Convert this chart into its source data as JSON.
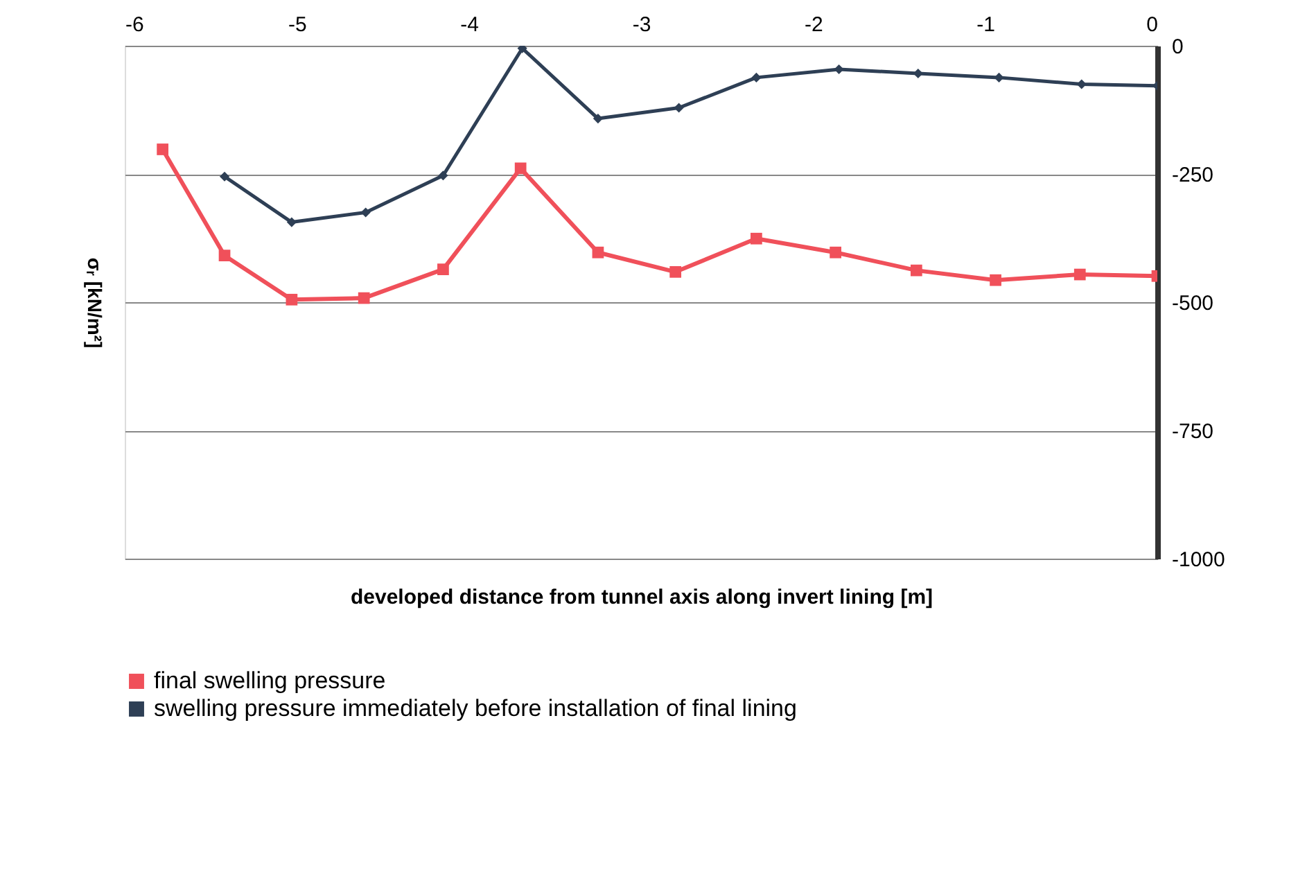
{
  "chart_data": {
    "type": "line",
    "xlabel": "developed distance from tunnel axis along invert lining [m]",
    "ylabel": "σᵣ [kN/m²]",
    "xlim": [
      -6,
      0
    ],
    "xticks": [
      -6,
      -5,
      -4,
      -3,
      -2,
      -1,
      0
    ],
    "ylim": [
      -1000,
      0
    ],
    "yticks": [
      0,
      -250,
      -500,
      -750,
      -1000
    ],
    "grid": "y",
    "legend": "bottom",
    "series": [
      {
        "name": "final swelling pressure",
        "color": "#f0505a",
        "marker": "square",
        "x": [
          -5.78,
          -5.42,
          -5.03,
          -4.61,
          -4.15,
          -3.7,
          -3.25,
          -2.8,
          -2.33,
          -1.87,
          -1.4,
          -0.94,
          -0.45,
          0
        ],
        "values": [
          -202,
          -409,
          -495,
          -492,
          -436,
          -239,
          -403,
          -441,
          -376,
          -403,
          -438,
          -457,
          -446,
          -449
        ]
      },
      {
        "name": "swelling pressure immediately before installation of final lining",
        "color": "#2e3f55",
        "marker": "diamond",
        "x": [
          -5.42,
          -5.03,
          -4.6,
          -4.15,
          -3.69,
          -3.25,
          -2.78,
          -2.33,
          -1.85,
          -1.39,
          -0.92,
          -0.44,
          0
        ],
        "values": [
          -255,
          -344,
          -325,
          -253,
          -5,
          -142,
          -121,
          -62,
          -46,
          -54,
          -62,
          -75,
          -78
        ]
      }
    ]
  }
}
